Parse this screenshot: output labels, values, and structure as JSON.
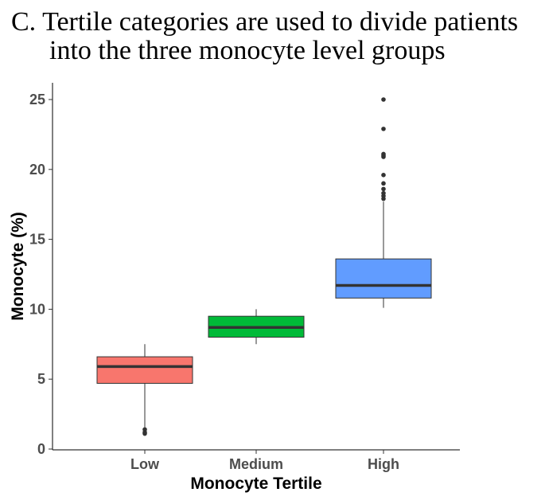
{
  "caption": {
    "line1": "C. Tertile categories are used to divide patients",
    "line2": "into the three monocyte level groups"
  },
  "chart_data": {
    "type": "boxplot",
    "xlabel": "Monocyte Tertile",
    "ylabel": "Monocyte (%)",
    "ylim": [
      0,
      26
    ],
    "yticks": [
      0,
      5,
      10,
      15,
      20,
      25
    ],
    "categories": [
      "Low",
      "Medium",
      "High"
    ],
    "grid": false,
    "boxes": [
      {
        "category": "Low",
        "color": "#F8766D",
        "whisker_low": 1.5,
        "q1": 4.7,
        "median": 5.9,
        "q3": 6.6,
        "whisker_high": 7.5,
        "outliers": [
          1.1,
          1.2,
          1.4
        ]
      },
      {
        "category": "Medium",
        "color": "#00BA38",
        "whisker_low": 7.5,
        "q1": 8.0,
        "median": 8.7,
        "q3": 9.5,
        "whisker_high": 10.0,
        "outliers": []
      },
      {
        "category": "High",
        "color": "#619CFF",
        "whisker_low": 10.1,
        "q1": 10.8,
        "median": 11.7,
        "q3": 13.6,
        "whisker_high": 17.7,
        "outliers": [
          17.9,
          18.1,
          18.3,
          18.6,
          19.0,
          19.6,
          20.9,
          21.0,
          21.1,
          22.9,
          25.0
        ]
      }
    ]
  }
}
